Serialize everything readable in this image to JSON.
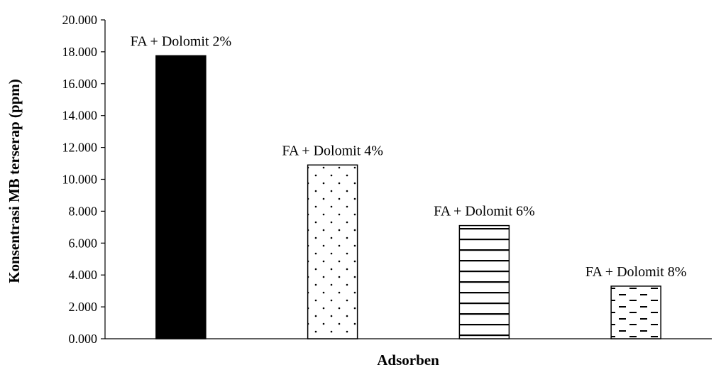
{
  "chart_data": {
    "type": "bar",
    "categories": [
      "FA + Dolomit 2%",
      "FA + Dolomit 4%",
      "FA + Dolomit 6%",
      "FA + Dolomit 8%"
    ],
    "values": [
      17.75,
      10.9,
      7.1,
      3.3
    ],
    "patterns": [
      "solid",
      "dots",
      "horizontal-lines",
      "dashes"
    ],
    "xlabel": "Adsorben",
    "ylabel": "Konsentrasi MB terserap (ppm)",
    "ylim": [
      0,
      20
    ],
    "yticks": [
      0,
      2,
      4,
      6,
      8,
      10,
      12,
      14,
      16,
      18,
      20
    ],
    "ytick_labels": [
      "0.000",
      "2.000",
      "4.000",
      "6.000",
      "8.000",
      "10.000",
      "12.000",
      "14.000",
      "16.000",
      "18.000",
      "20.000"
    ],
    "grid": false,
    "legend": "none",
    "bar_color": "#000000"
  }
}
